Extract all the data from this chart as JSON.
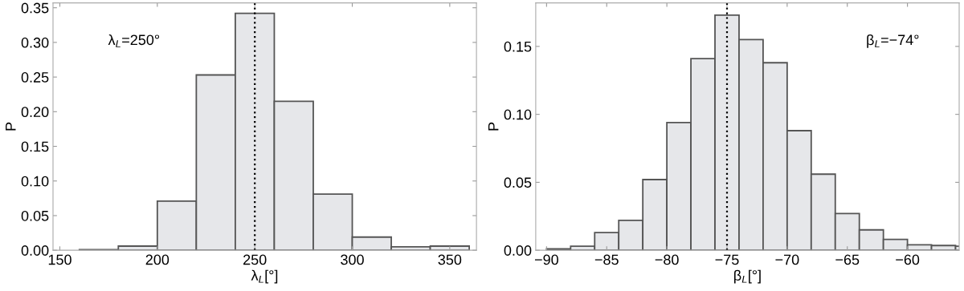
{
  "chart_data": [
    {
      "type": "histogram",
      "xlabel": "λ$_{L}$[°]",
      "ylabel": "P",
      "bins": [
        160,
        180,
        200,
        220,
        240,
        260,
        280,
        300,
        320,
        340,
        360
      ],
      "values": [
        0.001,
        0.006,
        0.071,
        0.253,
        0.342,
        0.215,
        0.081,
        0.019,
        0.005,
        0.006
      ],
      "color": "#e6e7ea",
      "xlim": [
        146.5,
        363.7
      ],
      "xticks": [
        150,
        200,
        250,
        300,
        350
      ],
      "ylim": [
        0,
        0.357
      ],
      "yticks": [
        {
          "value": 0,
          "label": "0.00"
        },
        0.05,
        {
          "value": 0.1,
          "label": "0.10"
        },
        0.15,
        {
          "value": 0.2,
          "label": "0.20"
        },
        0.25,
        {
          "value": 0.3,
          "label": "0.30"
        },
        0.35
      ],
      "ref_lines": [
        {
          "axis": "x",
          "value": 250,
          "color": "#000000",
          "line_style": "dotted"
        }
      ],
      "annotations": [
        "λ$_{L}$=250°"
      ],
      "grid": false,
      "legend": false
    },
    {
      "type": "histogram",
      "xlabel": "β$_{L}$[°]",
      "ylabel": "P",
      "bins": [
        -90,
        -88,
        -86,
        -84,
        -82,
        -80,
        -78,
        -76,
        -74,
        -72,
        -70,
        -68,
        -66,
        -64,
        -62,
        -60,
        -58,
        -56,
        -54
      ],
      "values": [
        0.001,
        0.003,
        0.013,
        0.022,
        0.052,
        0.094,
        0.141,
        0.173,
        0.155,
        0.138,
        0.088,
        0.056,
        0.027,
        0.015,
        0.008,
        0.004,
        0.0035,
        0.003
      ],
      "color": "#e6e7ea",
      "xlim": [
        -90.9,
        -55.7
      ],
      "xticks": [
        -90,
        -85,
        -80,
        -75,
        -70,
        -65,
        -60
      ],
      "ylim": [
        0,
        0.182
      ],
      "yticks": [
        {
          "value": 0,
          "label": "0.00"
        },
        0.05,
        {
          "value": 0.1,
          "label": "0.10"
        },
        0.15
      ],
      "ref_lines": [
        {
          "axis": "x",
          "value": -75,
          "color": "#000000",
          "line_style": "dotted"
        }
      ],
      "annotations": [
        "β$_{L}$=−74°"
      ],
      "grid": false,
      "legend": false
    }
  ]
}
